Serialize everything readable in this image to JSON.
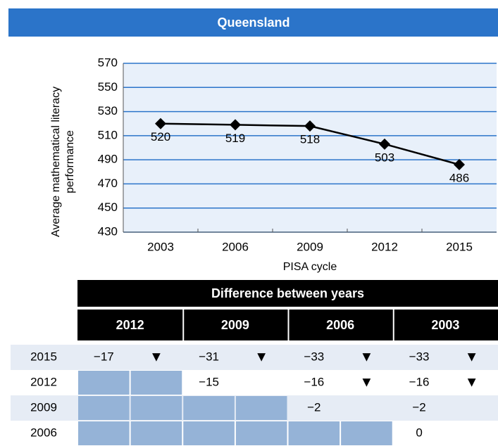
{
  "title": "Queensland",
  "chart_data": {
    "type": "line",
    "y_label": [
      "Average mathematical literacy",
      "performance"
    ],
    "x_label": "PISA cycle",
    "categories": [
      "2003",
      "2006",
      "2009",
      "2012",
      "2015"
    ],
    "values": [
      520,
      519,
      518,
      503,
      486
    ],
    "color": "#000000",
    "ylim": [
      430,
      570
    ],
    "yticks": [
      430,
      450,
      470,
      490,
      510,
      530,
      550,
      570
    ],
    "grid": true
  },
  "table": {
    "header": "Difference between years",
    "columns": [
      "2012",
      "2009",
      "2006",
      "2003"
    ],
    "rows": [
      {
        "year": "2015",
        "cells": [
          {
            "diff": "−17",
            "mark": "▼"
          },
          {
            "diff": "−31",
            "mark": "▼"
          },
          {
            "diff": "−33",
            "mark": "▼"
          },
          {
            "diff": "−33",
            "mark": "▼"
          }
        ]
      },
      {
        "year": "2012",
        "cells": [
          null,
          {
            "diff": "−15",
            "mark": null
          },
          {
            "diff": "−16",
            "mark": "▼"
          },
          {
            "diff": "−16",
            "mark": "▼"
          }
        ]
      },
      {
        "year": "2009",
        "cells": [
          null,
          null,
          {
            "diff": "−2",
            "mark": null
          },
          {
            "diff": "−2",
            "mark": null
          }
        ]
      },
      {
        "year": "2006",
        "cells": [
          null,
          null,
          null,
          {
            "diff": "0",
            "mark": null
          }
        ]
      }
    ]
  }
}
